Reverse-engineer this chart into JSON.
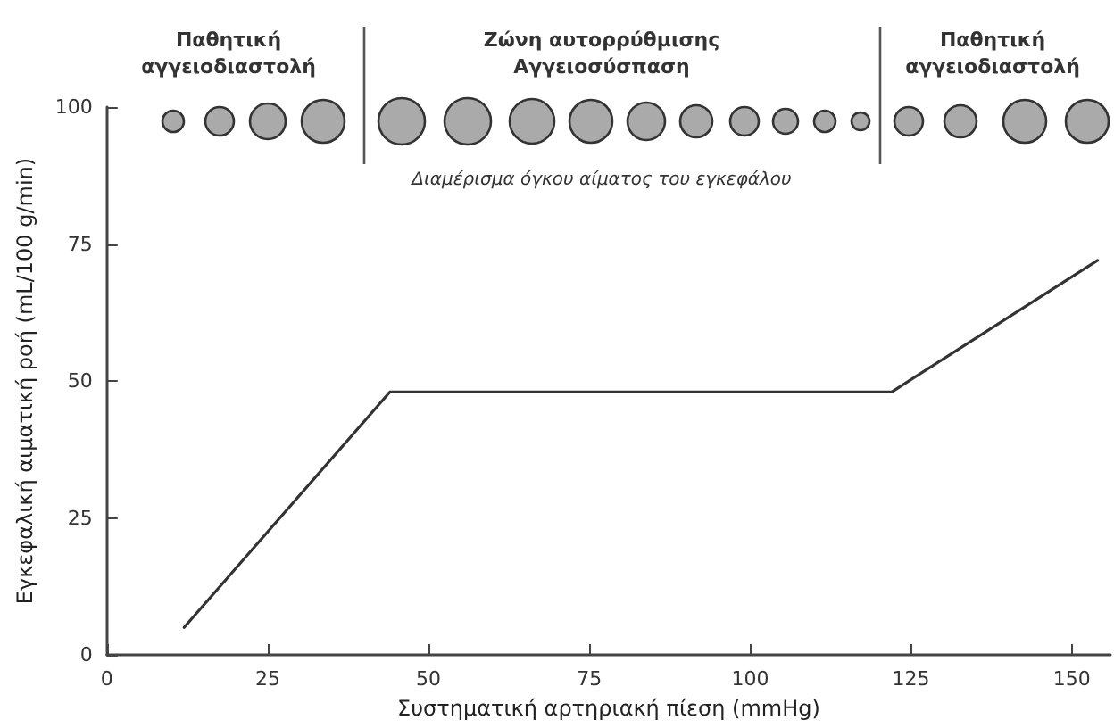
{
  "chart_data": {
    "type": "line",
    "xlabel": "Συστηματική αρτηριακή πίεση (mmHg)",
    "ylabel": "Εγκεφαλική αιματική ροή (mL/100 g/min)",
    "x": [
      12,
      44,
      122,
      154
    ],
    "series": [
      {
        "color": "#333333",
        "values": [
          5,
          48,
          48,
          72
        ]
      }
    ],
    "xlim": [
      0,
      156
    ],
    "xticks": [
      0,
      25,
      50,
      75,
      100,
      125,
      150
    ],
    "ylim": [
      0,
      100
    ],
    "yticks": [
      0,
      25,
      50,
      75,
      100
    ],
    "annotations": [
      "Παθητική\nαγγειοδιαστολή",
      "Ζώνη αυτορρύθμισης\nΑγγειοσύσπαση",
      "Παθητική\nαγγειοδιαστολή",
      "Διαμέρισμα όγκου αίματος του εγκεφάλου"
    ],
    "grid": false,
    "marker": "none",
    "line_style": "solid"
  }
}
